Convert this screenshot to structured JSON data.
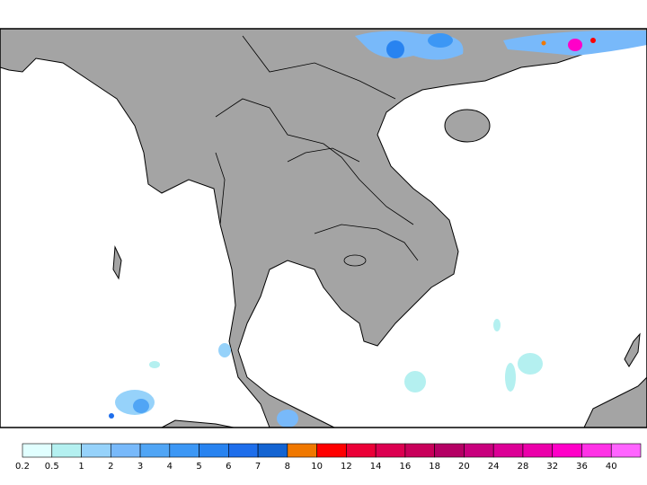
{
  "legend": {
    "levels": [
      0.2,
      0.5,
      1,
      2,
      3,
      4,
      5,
      6,
      7,
      8,
      10,
      12,
      14,
      16,
      18,
      20,
      24,
      28,
      32,
      36,
      40
    ],
    "colors": [
      "#e1ffff",
      "#b4f0f0",
      "#96d2fa",
      "#78b9fa",
      "#50a5f5",
      "#3c97f5",
      "#2883f0",
      "#1e6eeb",
      "#1464d2",
      "#f07800",
      "#ff0000",
      "#eb0037",
      "#dc0050",
      "#c8005a",
      "#b40064",
      "#c8007d",
      "#dc0096",
      "#eb00aa",
      "#ff00c8",
      "#ff32e6",
      "#ff64ff"
    ]
  }
}
